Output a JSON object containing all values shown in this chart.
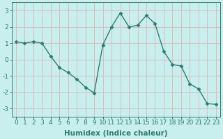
{
  "x": [
    0,
    1,
    2,
    3,
    4,
    5,
    6,
    7,
    8,
    9,
    10,
    11,
    12,
    13,
    14,
    15,
    16,
    17,
    18,
    19,
    20,
    21,
    22,
    23
  ],
  "y": [
    1.1,
    1.0,
    1.1,
    1.0,
    0.2,
    -0.5,
    -0.8,
    -1.2,
    -1.7,
    -2.05,
    0.9,
    2.0,
    2.85,
    2.0,
    2.1,
    2.7,
    2.2,
    0.5,
    -0.3,
    -0.4,
    -1.5,
    -1.8,
    -2.7,
    -2.75
  ],
  "line_color": "#2e7d6e",
  "marker": "D",
  "markersize": 2.5,
  "linewidth": 1.0,
  "bg_color": "#c8eeee",
  "grid_color": "#b0d8d8",
  "xlabel": "Humidex (Indice chaleur)",
  "xlabel_fontsize": 7.5,
  "tick_fontsize": 6.5,
  "ylim": [
    -3.5,
    3.5
  ],
  "xlim": [
    -0.5,
    23.5
  ],
  "yticks": [
    -3,
    -2,
    -1,
    0,
    1,
    2,
    3
  ],
  "title": ""
}
